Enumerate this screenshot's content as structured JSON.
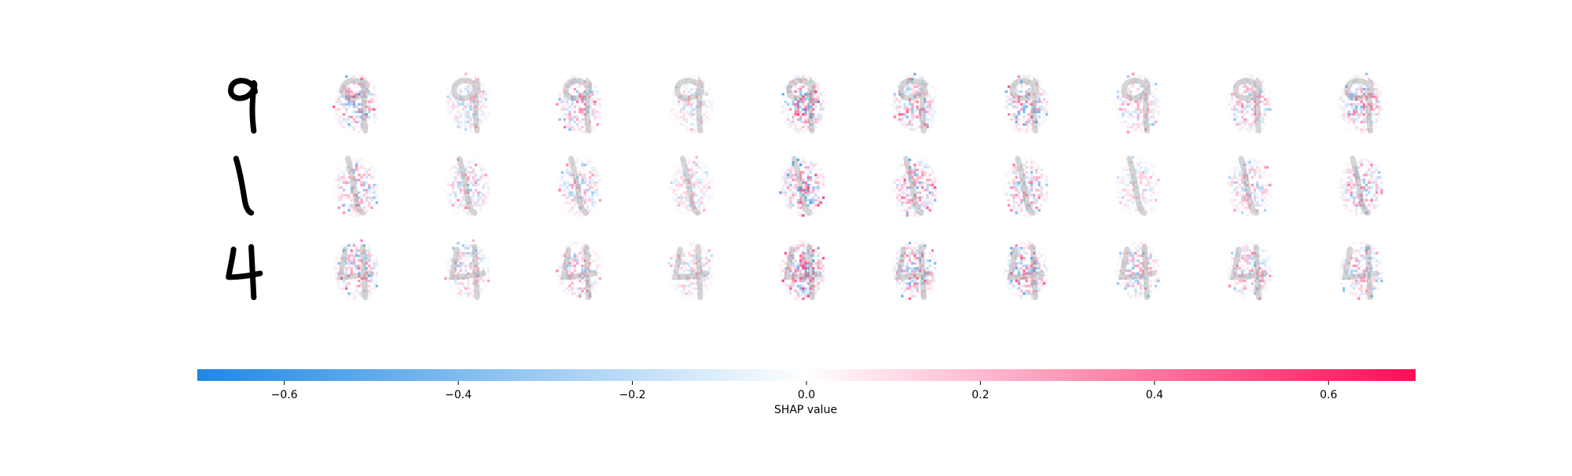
{
  "chart_data": {
    "type": "heatmap",
    "title": "",
    "rows": [
      {
        "digit": "9",
        "original_label": "9"
      },
      {
        "digit": "1",
        "original_label": "1"
      },
      {
        "digit": "4",
        "original_label": "4"
      }
    ],
    "explanation_columns": 10,
    "colorbar": {
      "label": "SHAP value",
      "range": [
        -0.7,
        0.7
      ],
      "ticks": [
        -0.6,
        -0.4,
        -0.2,
        0.0,
        0.2,
        0.4,
        0.6
      ],
      "tick_labels": [
        "−0.6",
        "−0.4",
        "−0.2",
        "0.0",
        "0.2",
        "0.4",
        "0.6"
      ],
      "negative_color": "#1e88e5",
      "zero_color": "#ffffff",
      "positive_color": "#ff0d57"
    },
    "peak_intensity": [
      [
        0.6,
        0.35,
        0.55,
        0.3,
        0.7,
        0.55,
        0.6,
        0.4,
        0.45,
        0.6
      ],
      [
        0.5,
        0.45,
        0.45,
        0.3,
        0.7,
        0.6,
        0.5,
        0.3,
        0.4,
        0.5
      ],
      [
        0.55,
        0.4,
        0.45,
        0.3,
        0.75,
        0.6,
        0.6,
        0.45,
        0.45,
        0.45
      ]
    ]
  }
}
